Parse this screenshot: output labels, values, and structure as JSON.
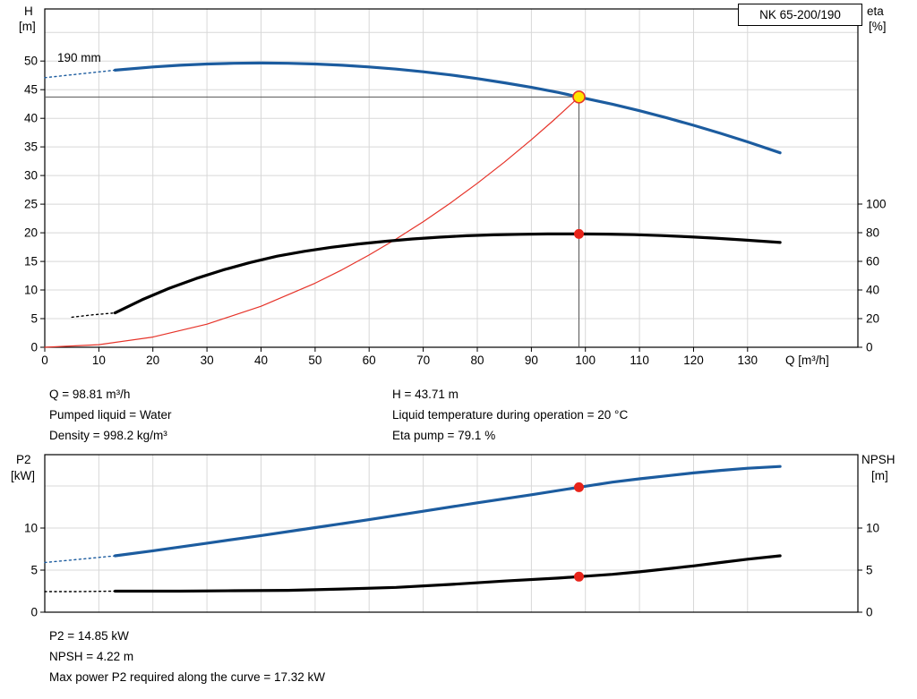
{
  "model": "NK 65-200/190",
  "info_top": {
    "left": [
      "Q = 98.81 m³/h",
      "Pumped liquid = Water",
      "Density = 998.2 kg/m³"
    ],
    "right": [
      "H = 43.71 m",
      "Liquid temperature during operation = 20 °C",
      "Eta pump = 79.1 %"
    ]
  },
  "info_bottom": [
    "P2 = 14.85 kW",
    "NPSH = 4.22 m",
    "Max power P2 required along the curve = 17.32 kW"
  ],
  "duty_point": {
    "Q": 98.81,
    "H": 43.71,
    "eta": 79.1,
    "P2": 14.85,
    "NPSH": 4.22,
    "P2_max_along_curve": 17.32
  },
  "chart_data": [
    {
      "id": "head",
      "name": "head-efficiency-chart",
      "type": "line",
      "xlabel": "Q [m³/h]",
      "ylabel": "H [m]",
      "y2label": "eta [%]",
      "x_range": [
        0,
        150.4
      ],
      "y_range": [
        0,
        59.1
      ],
      "y2_range": [
        0,
        236.25
      ],
      "x_ticks": [
        {
          "v": 0,
          "t": "0"
        },
        {
          "v": 10,
          "t": "10"
        },
        {
          "v": 20,
          "t": "20"
        },
        {
          "v": 30,
          "t": "30"
        },
        {
          "v": 40,
          "t": "40"
        },
        {
          "v": 50,
          "t": "50"
        },
        {
          "v": 60,
          "t": "60"
        },
        {
          "v": 70,
          "t": "70"
        },
        {
          "v": 80,
          "t": "80"
        },
        {
          "v": 90,
          "t": "90"
        },
        {
          "v": 100,
          "t": "100"
        },
        {
          "v": 110,
          "t": "110"
        },
        {
          "v": 120,
          "t": "120"
        },
        {
          "v": 130,
          "t": "130"
        }
      ],
      "y_ticks": [
        {
          "v": 0,
          "t": "0"
        },
        {
          "v": 5,
          "t": "5"
        },
        {
          "v": 10,
          "t": "10"
        },
        {
          "v": 15,
          "t": "15"
        },
        {
          "v": 20,
          "t": "20"
        },
        {
          "v": 25,
          "t": "25"
        },
        {
          "v": 30,
          "t": "30"
        },
        {
          "v": 35,
          "t": "35"
        },
        {
          "v": 40,
          "t": "40"
        },
        {
          "v": 45,
          "t": "45"
        },
        {
          "v": 50,
          "t": "50"
        }
      ],
      "y2_ticks": [
        {
          "v": 0,
          "t": "0"
        },
        {
          "v": 20,
          "t": "20"
        },
        {
          "v": 40,
          "t": "40"
        },
        {
          "v": 60,
          "t": "60"
        },
        {
          "v": 80,
          "t": "80"
        },
        {
          "v": 100,
          "t": "100"
        }
      ],
      "grid_x": [
        10,
        20,
        30,
        40,
        50,
        60,
        70,
        80,
        90,
        100,
        110,
        120,
        130
      ],
      "grid_y": [
        5,
        10,
        15,
        20,
        25,
        30,
        35,
        40,
        45,
        50,
        55
      ],
      "y_title_lines": [
        "H",
        "[m]"
      ],
      "y2_title_lines": [
        "eta",
        "[%]"
      ],
      "x_title": "Q [m³/h]",
      "series": [
        {
          "name": "head-curve-dashed",
          "axis": "y",
          "color": "#1c5c9f",
          "width": 1.4,
          "dash": "2 3.5",
          "points": [
            [
              0,
              47.1
            ],
            [
              6,
              47.7
            ],
            [
              13,
              48.41
            ]
          ]
        },
        {
          "name": "head-curve",
          "axis": "y",
          "color": "#1c5c9f",
          "width": 3.2,
          "points": [
            [
              13,
              48.41
            ],
            [
              20,
              48.97
            ],
            [
              25,
              49.27
            ],
            [
              30,
              49.48
            ],
            [
              35,
              49.61
            ],
            [
              40,
              49.65
            ],
            [
              45,
              49.61
            ],
            [
              50,
              49.48
            ],
            [
              55,
              49.27
            ],
            [
              60,
              48.97
            ],
            [
              65,
              48.59
            ],
            [
              70,
              48.12
            ],
            [
              75,
              47.57
            ],
            [
              80,
              46.93
            ],
            [
              85,
              46.2
            ],
            [
              90,
              45.4
            ],
            [
              95,
              44.51
            ],
            [
              98.81,
              43.71
            ],
            [
              105,
              42.47
            ],
            [
              110,
              41.32
            ],
            [
              115,
              40.09
            ],
            [
              120,
              38.77
            ],
            [
              125,
              37.37
            ],
            [
              130,
              35.88
            ],
            [
              136,
              33.98
            ]
          ]
        },
        {
          "name": "system-curve",
          "axis": "y",
          "color": "#e63329",
          "width": 1.2,
          "points": [
            [
              0,
              0
            ],
            [
              10,
              0.45
            ],
            [
              20,
              1.79
            ],
            [
              30,
              4.03
            ],
            [
              40,
              7.16
            ],
            [
              50,
              11.19
            ],
            [
              55,
              13.54
            ],
            [
              60,
              16.12
            ],
            [
              65,
              18.92
            ],
            [
              70,
              21.94
            ],
            [
              75,
              25.18
            ],
            [
              80,
              28.65
            ],
            [
              85,
              32.34
            ],
            [
              90,
              36.26
            ],
            [
              94,
              39.55
            ],
            [
              98.81,
              43.71
            ]
          ]
        },
        {
          "name": "efficiency-curve-dashed",
          "axis": "y2",
          "color": "#000000",
          "width": 1.4,
          "dash": "2 3.5",
          "points": [
            [
              5,
              21.0
            ],
            [
              9,
              22.7
            ],
            [
              13,
              24.0
            ]
          ]
        },
        {
          "name": "efficiency-curve",
          "axis": "y2",
          "color": "#000000",
          "width": 3.2,
          "points": [
            [
              13,
              24.0
            ],
            [
              18,
              33.2
            ],
            [
              23,
              41.2
            ],
            [
              28,
              48.0
            ],
            [
              33,
              54.0
            ],
            [
              38,
              59.2
            ],
            [
              43,
              63.6
            ],
            [
              48,
              67.0
            ],
            [
              53,
              69.8
            ],
            [
              58,
              72.1
            ],
            [
              63,
              74.0
            ],
            [
              68,
              75.6
            ],
            [
              73,
              76.9
            ],
            [
              78,
              77.9
            ],
            [
              83,
              78.5
            ],
            [
              88,
              78.9
            ],
            [
              93,
              79.1
            ],
            [
              98.81,
              79.1
            ],
            [
              104,
              79.0
            ],
            [
              109,
              78.6
            ],
            [
              114,
              78.0
            ],
            [
              119,
              77.2
            ],
            [
              124,
              76.2
            ],
            [
              129,
              75.0
            ],
            [
              136,
              73.2
            ]
          ]
        }
      ],
      "ref_lines": [
        {
          "name": "duty-flow-line",
          "x1": 98.81,
          "y1": 0,
          "x2": 98.81,
          "y2": 43.71
        },
        {
          "name": "duty-head-line",
          "x1": 0,
          "y1": 43.71,
          "x2": 98.81,
          "y2": 43.71
        }
      ],
      "markers": [
        {
          "name": "duty-point-head",
          "x": 98.81,
          "y": 43.71,
          "axis": "y",
          "r": 6.5,
          "fill": "#ffe400",
          "stroke": "#e63329",
          "sw": 1.6,
          "interactable": true
        },
        {
          "name": "duty-point-efficiency",
          "x": 98.81,
          "y": 79.1,
          "axis": "y2",
          "r": 5.5,
          "fill": "#e8241a",
          "stroke": "none",
          "sw": 0,
          "interactable": true
        }
      ],
      "labels": [
        {
          "name": "impeller-diameter-label",
          "text": "190 mm",
          "x": 64,
          "y": 69,
          "size": 13.5
        }
      ]
    },
    {
      "id": "power",
      "name": "power-npsh-chart",
      "type": "line",
      "xlabel": "Q [m³/h]",
      "ylabel": "P2 [kW]",
      "y2label": "NPSH [m]",
      "x_range": [
        0,
        150.4
      ],
      "y_range": [
        0,
        18.72
      ],
      "y2_range": [
        0,
        18.72
      ],
      "x_ticks": [],
      "y_ticks": [
        {
          "v": 0,
          "t": "0"
        },
        {
          "v": 5,
          "t": "5"
        },
        {
          "v": 10,
          "t": "10"
        }
      ],
      "y2_ticks": [
        {
          "v": 0,
          "t": "0"
        },
        {
          "v": 5,
          "t": "5"
        },
        {
          "v": 10,
          "t": "10"
        }
      ],
      "grid_x": [
        10,
        20,
        30,
        40,
        50,
        60,
        70,
        80,
        90,
        100,
        110,
        120,
        130
      ],
      "grid_y": [
        5,
        10,
        15
      ],
      "y_title_lines": [
        "P2",
        "[kW]"
      ],
      "y2_title_lines": [
        "NPSH",
        "[m]"
      ],
      "x_title": null,
      "series": [
        {
          "name": "power-curve-dashed",
          "axis": "y",
          "color": "#1c5c9f",
          "width": 1.4,
          "dash": "2 3.5",
          "points": [
            [
              0,
              5.9
            ],
            [
              5,
              6.2
            ],
            [
              9,
              6.45
            ],
            [
              13,
              6.7
            ]
          ]
        },
        {
          "name": "power-curve",
          "axis": "y",
          "color": "#1c5c9f",
          "width": 3.2,
          "points": [
            [
              13,
              6.7
            ],
            [
              20,
              7.3
            ],
            [
              30,
              8.2
            ],
            [
              40,
              9.1
            ],
            [
              50,
              10.05
            ],
            [
              60,
              11.0
            ],
            [
              70,
              12.0
            ],
            [
              80,
              13.0
            ],
            [
              90,
              13.95
            ],
            [
              98.81,
              14.85
            ],
            [
              105,
              15.45
            ],
            [
              110,
              15.85
            ],
            [
              115,
              16.2
            ],
            [
              120,
              16.55
            ],
            [
              125,
              16.85
            ],
            [
              130,
              17.1
            ],
            [
              136,
              17.32
            ]
          ]
        },
        {
          "name": "npsh-curve-dashed",
          "axis": "y2",
          "color": "#000000",
          "width": 1.4,
          "dash": "2 3.5",
          "points": [
            [
              0,
              2.45
            ],
            [
              6,
              2.45
            ],
            [
              13,
              2.5
            ]
          ]
        },
        {
          "name": "npsh-curve",
          "axis": "y2",
          "color": "#000000",
          "width": 3.2,
          "points": [
            [
              13,
              2.5
            ],
            [
              25,
              2.5
            ],
            [
              35,
              2.55
            ],
            [
              45,
              2.6
            ],
            [
              55,
              2.75
            ],
            [
              65,
              2.95
            ],
            [
              75,
              3.3
            ],
            [
              85,
              3.7
            ],
            [
              95,
              4.05
            ],
            [
              98.81,
              4.22
            ],
            [
              105,
              4.5
            ],
            [
              110,
              4.8
            ],
            [
              115,
              5.15
            ],
            [
              120,
              5.5
            ],
            [
              125,
              5.9
            ],
            [
              130,
              6.3
            ],
            [
              136,
              6.7
            ]
          ]
        }
      ],
      "ref_lines": [],
      "markers": [
        {
          "name": "duty-point-power",
          "x": 98.81,
          "y": 14.85,
          "axis": "y",
          "r": 5.5,
          "fill": "#e8241a",
          "stroke": "none",
          "sw": 0,
          "interactable": true
        },
        {
          "name": "duty-point-npsh",
          "x": 98.81,
          "y": 4.22,
          "axis": "y2",
          "r": 5.5,
          "fill": "#e8241a",
          "stroke": "none",
          "sw": 0,
          "interactable": true
        }
      ],
      "labels": []
    }
  ]
}
